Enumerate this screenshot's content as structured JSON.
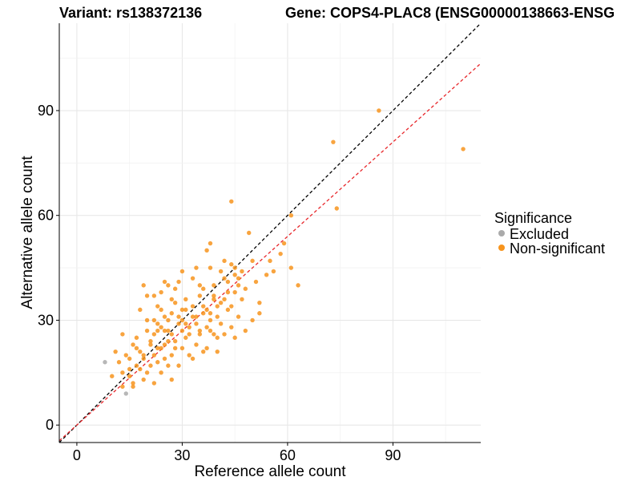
{
  "chart_data": {
    "type": "scatter",
    "title_left": "Variant: rs138372136",
    "title_right": "Gene: COPS4-PLAC8 (ENSG00000138663-ENSG",
    "xlabel": "Reference allele count",
    "ylabel": "Alternative allele count",
    "xlim": [
      -5,
      115
    ],
    "ylim": [
      -5,
      115
    ],
    "xticks": [
      0,
      30,
      60,
      90
    ],
    "yticks": [
      0,
      30,
      60,
      90
    ],
    "grid": true,
    "legend": {
      "title": "Significance",
      "placement": "right",
      "entries": [
        {
          "label": "Excluded",
          "color": "#AAAAAA"
        },
        {
          "label": "Non-significant",
          "color": "#F7941D"
        }
      ]
    },
    "reference_lines": [
      {
        "name": "identity",
        "slope": 1,
        "intercept": 0,
        "color": "#000000",
        "style": "dashed"
      },
      {
        "name": "fit",
        "slope": 0.9,
        "intercept": 0,
        "color": "#E8272B",
        "style": "dashed"
      }
    ],
    "series": [
      {
        "name": "Excluded",
        "color": "#AAAAAA",
        "points": [
          [
            8,
            18
          ],
          [
            14,
            9
          ]
        ]
      },
      {
        "name": "Non-significant",
        "color": "#F7941D",
        "points": [
          [
            86,
            90
          ],
          [
            73,
            81
          ],
          [
            110,
            79
          ],
          [
            74,
            62
          ],
          [
            44,
            64
          ],
          [
            61,
            60
          ],
          [
            49,
            55
          ],
          [
            59,
            52
          ],
          [
            38,
            52
          ],
          [
            37,
            50
          ],
          [
            42,
            47
          ],
          [
            58,
            49
          ],
          [
            55,
            47
          ],
          [
            50,
            47
          ],
          [
            38,
            45
          ],
          [
            44,
            46
          ],
          [
            45,
            45
          ],
          [
            41,
            44
          ],
          [
            34,
            45
          ],
          [
            30,
            44
          ],
          [
            61,
            45
          ],
          [
            56,
            44
          ],
          [
            54,
            43
          ],
          [
            63,
            40
          ],
          [
            19,
            40
          ],
          [
            25,
            41
          ],
          [
            26,
            40
          ],
          [
            28,
            39
          ],
          [
            22,
            37
          ],
          [
            24,
            38
          ],
          [
            35,
            40
          ],
          [
            36,
            39
          ],
          [
            43,
            38
          ],
          [
            45,
            38
          ],
          [
            39,
            36
          ],
          [
            42,
            36
          ],
          [
            47,
            36
          ],
          [
            52,
            35
          ],
          [
            20,
            37
          ],
          [
            27,
            36
          ],
          [
            23,
            34
          ],
          [
            24,
            33
          ],
          [
            33,
            34
          ],
          [
            36,
            32
          ],
          [
            40,
            31
          ],
          [
            43,
            33
          ],
          [
            46,
            31
          ],
          [
            52,
            32
          ],
          [
            30,
            33
          ],
          [
            28,
            35
          ],
          [
            18,
            33
          ],
          [
            50,
            30
          ],
          [
            25,
            31
          ],
          [
            22,
            30
          ],
          [
            26,
            30
          ],
          [
            29,
            31
          ],
          [
            31,
            29
          ],
          [
            34,
            29
          ],
          [
            38,
            30
          ],
          [
            37,
            28
          ],
          [
            41,
            29
          ],
          [
            44,
            28
          ],
          [
            48,
            27
          ],
          [
            20,
            30
          ],
          [
            23,
            27
          ],
          [
            27,
            26
          ],
          [
            30,
            27
          ],
          [
            32,
            26
          ],
          [
            35,
            27
          ],
          [
            39,
            26
          ],
          [
            42,
            26
          ],
          [
            45,
            25
          ],
          [
            13,
            26
          ],
          [
            17,
            25
          ],
          [
            21,
            24
          ],
          [
            25,
            23
          ],
          [
            28,
            24
          ],
          [
            31,
            25
          ],
          [
            34,
            23
          ],
          [
            37,
            22
          ],
          [
            40,
            21
          ],
          [
            16,
            23
          ],
          [
            18,
            21
          ],
          [
            22,
            20
          ],
          [
            24,
            22
          ],
          [
            27,
            20
          ],
          [
            30,
            22
          ],
          [
            33,
            19
          ],
          [
            11,
            21
          ],
          [
            14,
            20
          ],
          [
            19,
            19
          ],
          [
            23,
            18
          ],
          [
            26,
            17
          ],
          [
            29,
            17
          ],
          [
            12,
            18
          ],
          [
            15,
            16
          ],
          [
            17,
            17
          ],
          [
            20,
            15
          ],
          [
            24,
            15
          ],
          [
            27,
            13
          ],
          [
            10,
            14
          ],
          [
            13,
            15
          ],
          [
            16,
            12
          ],
          [
            19,
            13
          ],
          [
            22,
            12
          ],
          [
            13,
            11
          ],
          [
            16,
            11
          ],
          [
            21,
            17
          ],
          [
            18,
            16
          ],
          [
            15,
            19
          ],
          [
            25,
            19
          ],
          [
            32,
            20
          ],
          [
            36,
            21
          ],
          [
            26,
            27
          ],
          [
            29,
            29
          ],
          [
            33,
            31
          ],
          [
            37,
            33
          ],
          [
            41,
            35
          ],
          [
            31,
            36
          ],
          [
            35,
            37
          ],
          [
            39,
            37
          ],
          [
            43,
            41
          ],
          [
            46,
            42
          ],
          [
            29,
            41
          ],
          [
            33,
            42
          ],
          [
            20,
            27
          ],
          [
            23,
            29
          ],
          [
            17,
            22
          ],
          [
            21,
            23
          ],
          [
            35,
            26
          ],
          [
            38,
            27
          ],
          [
            40,
            25
          ],
          [
            48,
            39
          ],
          [
            51,
            41
          ],
          [
            27,
            32
          ],
          [
            24,
            28
          ],
          [
            30,
            30
          ],
          [
            32,
            28
          ],
          [
            28,
            22
          ],
          [
            26,
            24
          ],
          [
            46,
            40
          ],
          [
            44,
            34
          ],
          [
            36,
            34
          ],
          [
            34,
            31
          ],
          [
            25,
            27
          ],
          [
            23,
            22
          ],
          [
            15,
            14
          ],
          [
            19,
            20
          ],
          [
            22,
            26
          ],
          [
            31,
            33
          ],
          [
            39,
            40
          ],
          [
            42,
            42
          ],
          [
            45,
            43
          ],
          [
            47,
            44
          ],
          [
            40,
            34
          ],
          [
            38,
            32
          ]
        ]
      }
    ]
  }
}
